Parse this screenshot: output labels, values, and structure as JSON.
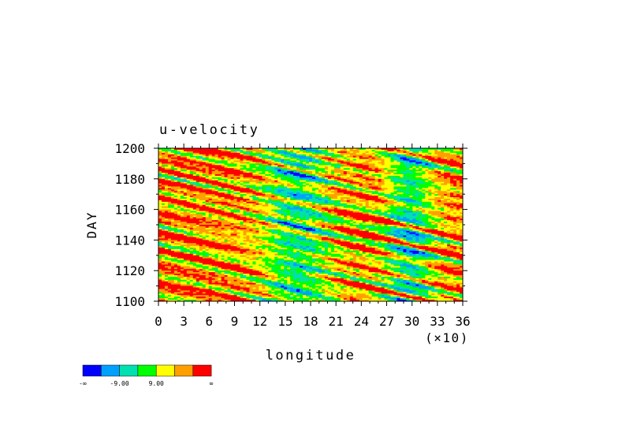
{
  "chart_data": {
    "type": "heatmap",
    "title": "u-velocity",
    "xlabel": "longitude",
    "ylabel": "DAY",
    "x_ticks": [
      "0",
      "3",
      "6",
      "9",
      "12",
      "15",
      "18",
      "21",
      "24",
      "27",
      "30",
      "33",
      "36"
    ],
    "x_multiplier": "(×10)",
    "y_ticks": [
      "1100",
      "1120",
      "1140",
      "1160",
      "1180",
      "1200"
    ],
    "xlim": [
      0,
      360
    ],
    "ylim": [
      1100,
      1200
    ],
    "colorbar": {
      "labels": [
        "-∞",
        "-9.00",
        "9.00",
        "∞"
      ],
      "colors": [
        "#0000ff",
        "#00a0ff",
        "#00e0b0",
        "#00ff00",
        "#ffff00",
        "#ffa000",
        "#ff0000"
      ]
    },
    "grid": false,
    "legend_position": "bottom-left"
  }
}
